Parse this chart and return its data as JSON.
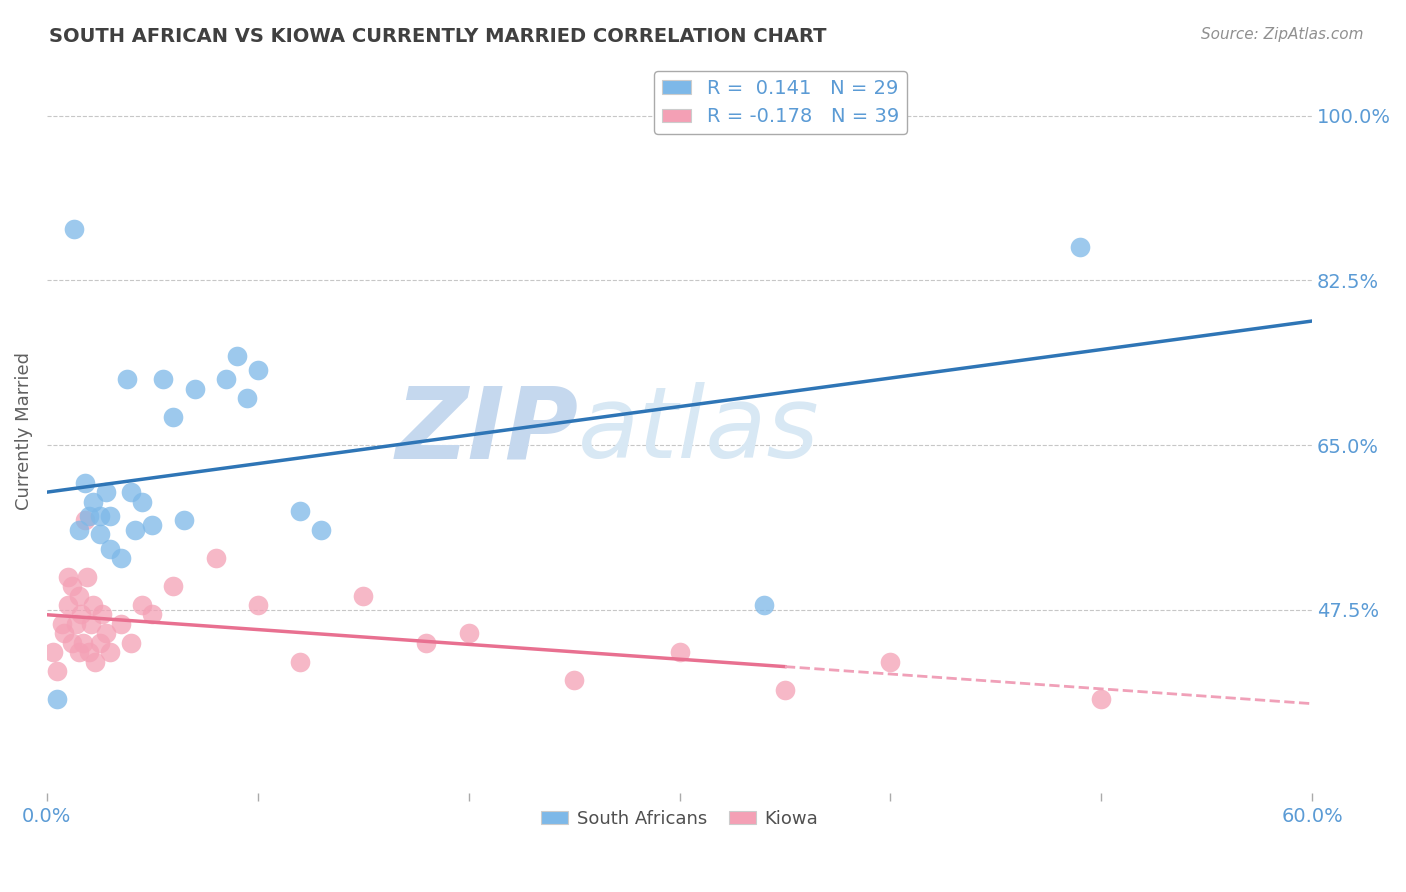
{
  "title": "SOUTH AFRICAN VS KIOWA CURRENTLY MARRIED CORRELATION CHART",
  "source_text": "Source: ZipAtlas.com",
  "ylabel": "Currently Married",
  "xlim": [
    0.0,
    0.6
  ],
  "ylim": [
    0.28,
    1.05
  ],
  "xticks": [
    0.0,
    0.1,
    0.2,
    0.3,
    0.4,
    0.5,
    0.6
  ],
  "xticklabels": [
    "0.0%",
    "",
    "",
    "",
    "",
    "",
    "60.0%"
  ],
  "yticks": [
    0.475,
    0.65,
    0.825,
    1.0
  ],
  "yticklabels": [
    "47.5%",
    "65.0%",
    "82.5%",
    "100.0%"
  ],
  "legend1_label": "R =  0.141   N = 29",
  "legend2_label": "R = -0.178   N = 39",
  "blue_color": "#7DB8E8",
  "pink_color": "#F4A0B5",
  "trend_blue_color": "#2E75B6",
  "trend_pink_color": "#E87090",
  "trend_pink_dash_color": "#F0A0B8",
  "grid_color": "#B0B0B0",
  "background_color": "#FFFFFF",
  "watermark_text": "ZIPatlas",
  "watermark_color": "#D8E8F8",
  "title_color": "#404040",
  "axis_color": "#5B9BD5",
  "sa_x": [
    0.005,
    0.013,
    0.015,
    0.018,
    0.02,
    0.022,
    0.025,
    0.025,
    0.028,
    0.03,
    0.03,
    0.035,
    0.038,
    0.04,
    0.042,
    0.045,
    0.05,
    0.055,
    0.06,
    0.065,
    0.07,
    0.085,
    0.09,
    0.095,
    0.1,
    0.12,
    0.13,
    0.34,
    0.49
  ],
  "sa_y": [
    0.38,
    0.88,
    0.56,
    0.61,
    0.575,
    0.59,
    0.575,
    0.555,
    0.6,
    0.575,
    0.54,
    0.53,
    0.72,
    0.6,
    0.56,
    0.59,
    0.565,
    0.72,
    0.68,
    0.57,
    0.71,
    0.72,
    0.745,
    0.7,
    0.73,
    0.58,
    0.56,
    0.48,
    0.86
  ],
  "kiowa_x": [
    0.003,
    0.005,
    0.007,
    0.008,
    0.01,
    0.01,
    0.012,
    0.012,
    0.014,
    0.015,
    0.015,
    0.016,
    0.017,
    0.018,
    0.019,
    0.02,
    0.021,
    0.022,
    0.023,
    0.025,
    0.026,
    0.028,
    0.03,
    0.035,
    0.04,
    0.045,
    0.05,
    0.06,
    0.08,
    0.1,
    0.12,
    0.15,
    0.18,
    0.2,
    0.25,
    0.3,
    0.35,
    0.4,
    0.5
  ],
  "kiowa_y": [
    0.43,
    0.41,
    0.46,
    0.45,
    0.51,
    0.48,
    0.44,
    0.5,
    0.46,
    0.43,
    0.49,
    0.47,
    0.44,
    0.57,
    0.51,
    0.43,
    0.46,
    0.48,
    0.42,
    0.44,
    0.47,
    0.45,
    0.43,
    0.46,
    0.44,
    0.48,
    0.47,
    0.5,
    0.53,
    0.48,
    0.42,
    0.49,
    0.44,
    0.45,
    0.4,
    0.43,
    0.39,
    0.42,
    0.38
  ],
  "trend_solid_end": 0.35,
  "trend_dash_start": 0.35,
  "trend_dash_end": 0.6
}
